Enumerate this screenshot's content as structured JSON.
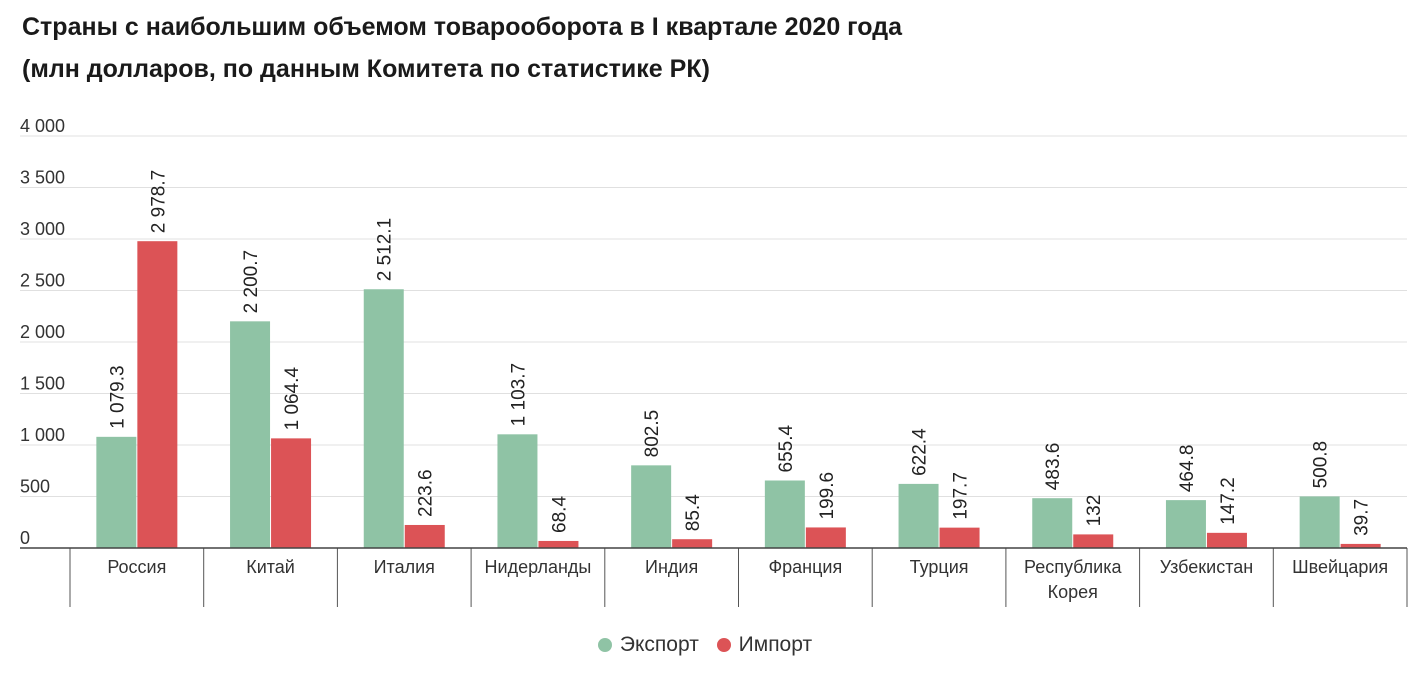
{
  "chart_data": {
    "type": "bar",
    "title": "Страны с наибольшим объемом товарооборота в I квартале 2020 года",
    "subtitle": "(млн долларов, по данным Комитета по статистике РК)",
    "categories": [
      [
        "Россия"
      ],
      [
        "Китай"
      ],
      [
        "Италия"
      ],
      [
        "Нидерланды"
      ],
      [
        "Индия"
      ],
      [
        "Франция"
      ],
      [
        "Турция"
      ],
      [
        "Республика",
        "Корея"
      ],
      [
        "Узбекистан"
      ],
      [
        "Швейцария"
      ]
    ],
    "series": [
      {
        "name": "Экспорт",
        "color": "#8fc3a5",
        "values": [
          1079.3,
          2200.7,
          2512.1,
          1103.7,
          802.5,
          655.4,
          622.4,
          483.6,
          464.8,
          500.8
        ],
        "labels": [
          "1 079.3",
          "2 200.7",
          "2 512.1",
          "1 103.7",
          "802.5",
          "655.4",
          "622.4",
          "483.6",
          "464.8",
          "500.8"
        ]
      },
      {
        "name": "Импорт",
        "color": "#dc5356",
        "values": [
          2978.7,
          1064.4,
          223.6,
          68.4,
          85.4,
          199.6,
          197.7,
          132,
          147.2,
          39.7
        ],
        "labels": [
          "2 978.7",
          "1 064.4",
          "223.6",
          "68.4",
          "85.4",
          "199.6",
          "197.7",
          "132",
          "147.2",
          "39.7"
        ]
      }
    ],
    "ylim": [
      0,
      4000
    ],
    "yticks": [
      0,
      500,
      1000,
      1500,
      2000,
      2500,
      3000,
      3500,
      4000
    ],
    "ytick_labels": [
      "0",
      "500",
      "1 000",
      "1 500",
      "2 000",
      "2 500",
      "3 000",
      "3 500",
      "4 000"
    ],
    "xlabel": "",
    "ylabel": "",
    "grid": true,
    "legend_position": "bottom-center",
    "colors": {
      "gridline": "#e0e0e0",
      "axis": "#444444"
    }
  }
}
